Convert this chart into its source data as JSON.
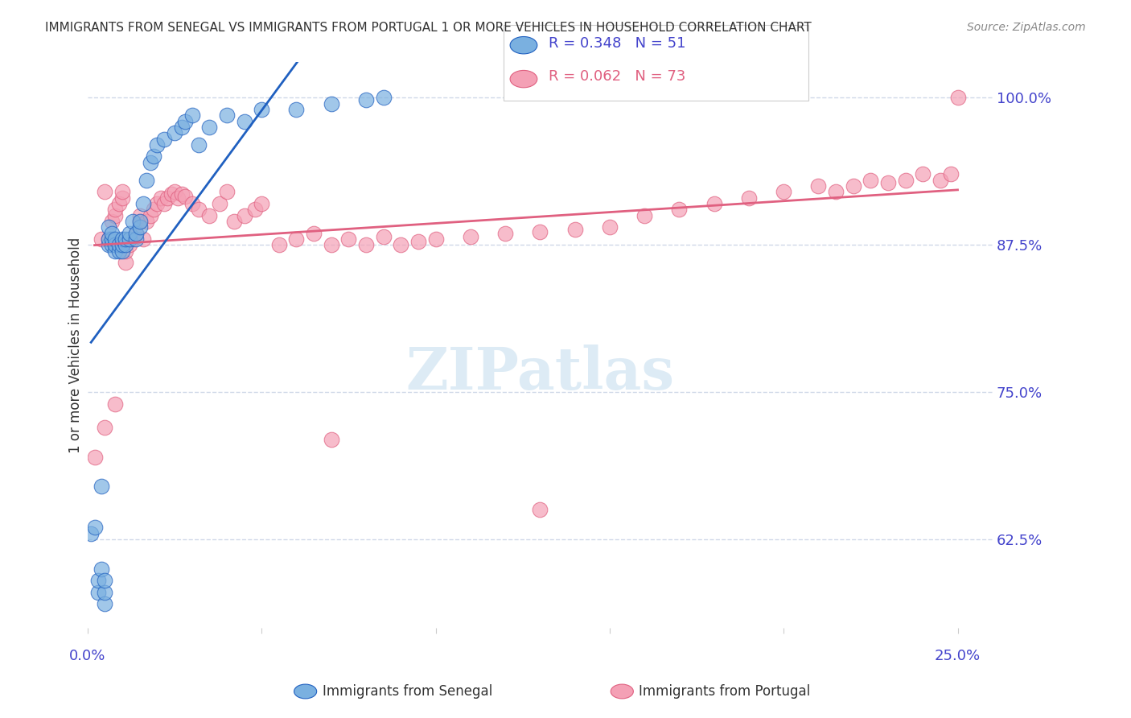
{
  "title": "IMMIGRANTS FROM SENEGAL VS IMMIGRANTS FROM PORTUGAL 1 OR MORE VEHICLES IN HOUSEHOLD CORRELATION CHART",
  "source": "Source: ZipAtlas.com",
  "ylabel": "1 or more Vehicles in Household",
  "yticks": [
    0.625,
    0.75,
    0.875,
    1.0
  ],
  "ytick_labels": [
    "62.5%",
    "75.0%",
    "87.5%",
    "100.0%"
  ],
  "R_senegal": 0.348,
  "N_senegal": 51,
  "R_portugal": 0.062,
  "N_portugal": 73,
  "senegal_color": "#7ab0e0",
  "portugal_color": "#f4a0b5",
  "senegal_line_color": "#2060c0",
  "portugal_line_color": "#e06080",
  "background_color": "#ffffff",
  "grid_color": "#d0d8e8",
  "axis_label_color": "#4444cc",
  "legend_text_color_blue": "#4444cc",
  "legend_text_color_pink": "#e06080",
  "senegal_x": [
    0.001,
    0.002,
    0.003,
    0.003,
    0.004,
    0.004,
    0.005,
    0.005,
    0.005,
    0.006,
    0.006,
    0.006,
    0.007,
    0.007,
    0.007,
    0.008,
    0.008,
    0.008,
    0.009,
    0.009,
    0.01,
    0.01,
    0.01,
    0.011,
    0.011,
    0.012,
    0.012,
    0.013,
    0.014,
    0.014,
    0.015,
    0.015,
    0.016,
    0.017,
    0.018,
    0.019,
    0.02,
    0.022,
    0.025,
    0.027,
    0.028,
    0.03,
    0.032,
    0.035,
    0.04,
    0.045,
    0.05,
    0.06,
    0.07,
    0.08,
    0.085
  ],
  "senegal_y": [
    0.63,
    0.635,
    0.58,
    0.59,
    0.6,
    0.67,
    0.57,
    0.58,
    0.59,
    0.875,
    0.88,
    0.89,
    0.875,
    0.88,
    0.885,
    0.87,
    0.875,
    0.88,
    0.87,
    0.875,
    0.87,
    0.875,
    0.88,
    0.875,
    0.88,
    0.88,
    0.885,
    0.895,
    0.88,
    0.885,
    0.89,
    0.895,
    0.91,
    0.93,
    0.945,
    0.95,
    0.96,
    0.965,
    0.97,
    0.975,
    0.98,
    0.985,
    0.96,
    0.975,
    0.985,
    0.98,
    0.99,
    0.99,
    0.995,
    0.998,
    1.0
  ],
  "portugal_x": [
    0.002,
    0.004,
    0.005,
    0.006,
    0.007,
    0.008,
    0.008,
    0.009,
    0.01,
    0.01,
    0.011,
    0.011,
    0.012,
    0.013,
    0.014,
    0.015,
    0.015,
    0.016,
    0.017,
    0.018,
    0.019,
    0.02,
    0.021,
    0.022,
    0.023,
    0.024,
    0.025,
    0.026,
    0.027,
    0.028,
    0.03,
    0.032,
    0.035,
    0.038,
    0.04,
    0.042,
    0.045,
    0.048,
    0.05,
    0.055,
    0.06,
    0.065,
    0.07,
    0.075,
    0.08,
    0.085,
    0.09,
    0.095,
    0.1,
    0.11,
    0.12,
    0.13,
    0.14,
    0.15,
    0.16,
    0.17,
    0.18,
    0.19,
    0.2,
    0.21,
    0.215,
    0.22,
    0.225,
    0.23,
    0.235,
    0.24,
    0.245,
    0.248,
    0.25,
    0.005,
    0.008,
    0.07,
    0.13
  ],
  "portugal_y": [
    0.695,
    0.88,
    0.92,
    0.88,
    0.895,
    0.9,
    0.905,
    0.91,
    0.915,
    0.92,
    0.86,
    0.87,
    0.875,
    0.88,
    0.885,
    0.895,
    0.9,
    0.88,
    0.895,
    0.9,
    0.905,
    0.91,
    0.915,
    0.91,
    0.915,
    0.918,
    0.92,
    0.915,
    0.918,
    0.916,
    0.91,
    0.905,
    0.9,
    0.91,
    0.92,
    0.895,
    0.9,
    0.905,
    0.91,
    0.875,
    0.88,
    0.885,
    0.875,
    0.88,
    0.875,
    0.882,
    0.875,
    0.878,
    0.88,
    0.882,
    0.885,
    0.886,
    0.888,
    0.89,
    0.9,
    0.905,
    0.91,
    0.915,
    0.92,
    0.925,
    0.92,
    0.925,
    0.93,
    0.928,
    0.93,
    0.935,
    0.93,
    0.935,
    1.0,
    0.72,
    0.74,
    0.71,
    0.65
  ],
  "xlim": [
    0.0,
    0.26
  ],
  "ylim": [
    0.55,
    1.03
  ]
}
